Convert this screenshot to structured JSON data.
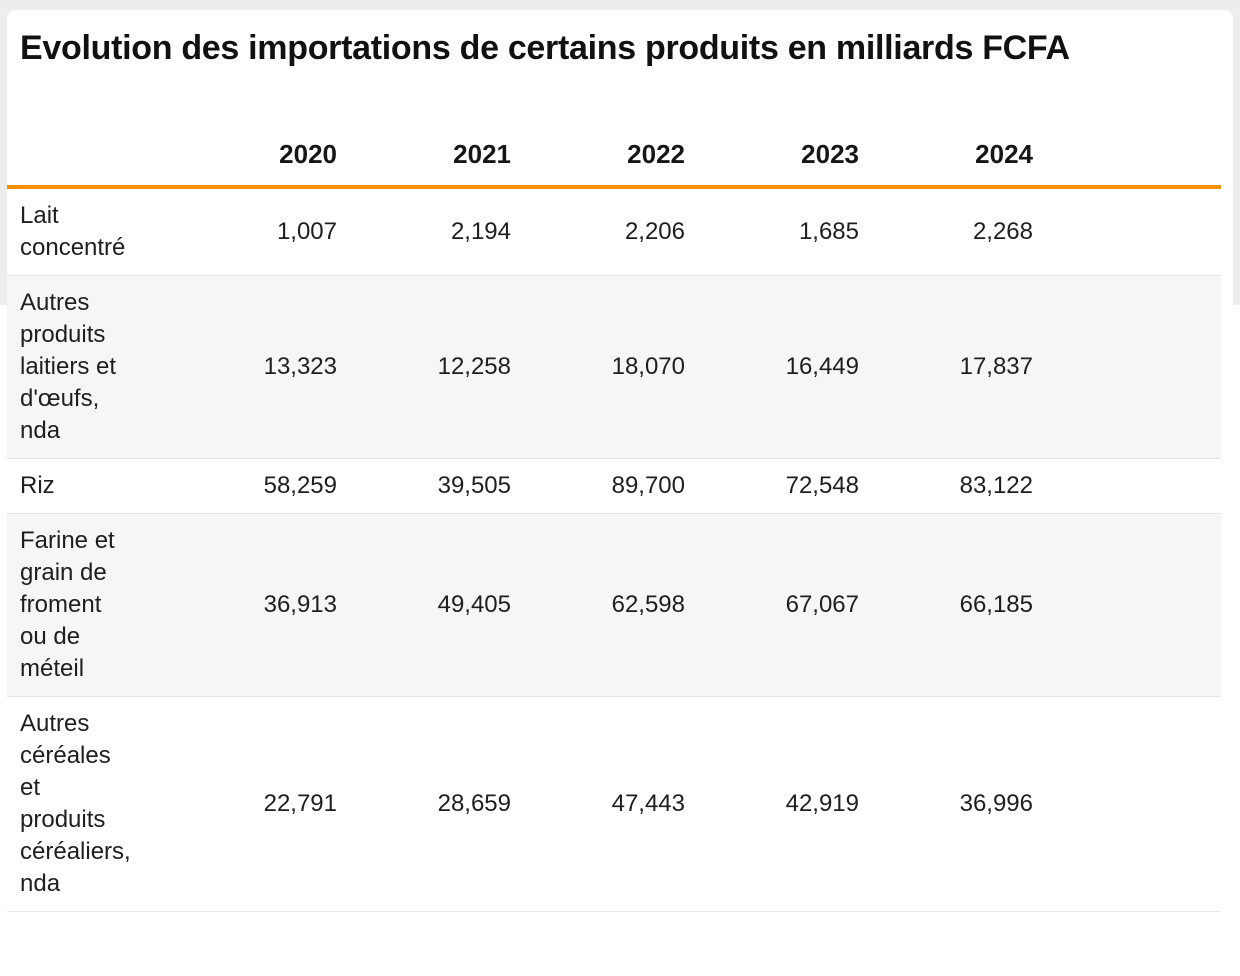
{
  "page": {
    "title": "Evolution des importations de certains produits en milliards FCFA"
  },
  "table": {
    "columns": [
      "",
      "2020",
      "2021",
      "2022",
      "2023",
      "2024"
    ],
    "rows": [
      {
        "label": "Lait\nconcentré",
        "label_full": "Lait concentré",
        "values": [
          "1,007",
          "2,194",
          "2,206",
          "1,685",
          "2,268"
        ]
      },
      {
        "label": "Autres\nproduits\nlaitiers et\nd'œufs,\nnda",
        "label_full": "Autres produits laitiers et d'œufs, nda",
        "values": [
          "13,323",
          "12,258",
          "18,070",
          "16,449",
          "17,837"
        ]
      },
      {
        "label": "Riz",
        "label_full": "Riz",
        "values": [
          "58,259",
          "39,505",
          "89,700",
          "72,548",
          "83,122"
        ]
      },
      {
        "label": "Farine et\ngrain de\nfroment\nou de\nméteil",
        "label_full": "Farine et grain de froment ou de méteil",
        "values": [
          "36,913",
          "49,405",
          "62,598",
          "67,067",
          "66,185"
        ]
      },
      {
        "label": "Autres\ncéréales\net\nproduits\ncéréaliers,\nnda",
        "label_full": "Autres céréales et produits céréaliers, nda",
        "values": [
          "22,791",
          "28,659",
          "47,443",
          "42,919",
          "36,996"
        ]
      }
    ]
  },
  "chart_data": {
    "type": "table",
    "title": "Evolution des importations de certains produits en milliards FCFA",
    "categories": [
      "2020",
      "2021",
      "2022",
      "2023",
      "2024"
    ],
    "series": [
      {
        "name": "Lait concentré",
        "values": [
          1007,
          2194,
          2206,
          1685,
          2268
        ]
      },
      {
        "name": "Autres produits laitiers et d'œufs, nda",
        "values": [
          13323,
          12258,
          18070,
          16449,
          17837
        ]
      },
      {
        "name": "Riz",
        "values": [
          58259,
          39505,
          89700,
          72548,
          83122
        ]
      },
      {
        "name": "Farine et grain de froment ou de méteil",
        "values": [
          36913,
          49405,
          62598,
          67067,
          66185
        ]
      },
      {
        "name": "Autres céréales et produits céréaliers, nda",
        "values": [
          22791,
          28659,
          47443,
          42919,
          36996
        ]
      }
    ],
    "legend_position": "none",
    "grid": false
  },
  "colors": {
    "accent_orange": "#f78f05",
    "zebra_row": "#f6f6f6",
    "row_border": "#e4e4e4",
    "frame_gray": "#ededed",
    "text": "#1e1e1e"
  }
}
